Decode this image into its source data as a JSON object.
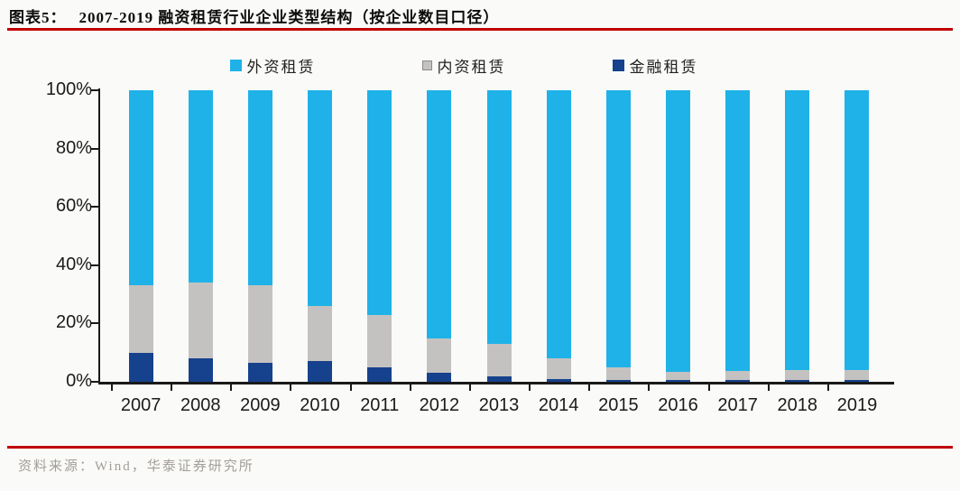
{
  "title": {
    "figure_label": "图表5：",
    "text": "2007-2019 融资租赁行业企业类型结构（按企业数目口径）"
  },
  "footer": {
    "source": "资料来源：Wind，华泰证券研究所"
  },
  "colors": {
    "foreign_leasing": "#1FB2E8",
    "domestic_leasing": "#C4C2C0",
    "financial_leasing": "#16418C",
    "rule_red": "#C00000",
    "axis_black": "#1a1a1a"
  },
  "chart_data": {
    "type": "bar",
    "stacked": true,
    "title": "2007-2019 融资租赁行业企业类型结构（按企业数目口径）",
    "categories": [
      "2007",
      "2008",
      "2009",
      "2010",
      "2011",
      "2012",
      "2013",
      "2014",
      "2015",
      "2016",
      "2017",
      "2018",
      "2019"
    ],
    "series": [
      {
        "name": "外资租赁",
        "color": "#1FB2E8",
        "swatch": "large",
        "values": [
          67,
          66,
          67,
          74,
          77,
          85,
          87,
          92,
          95,
          96.5,
          96.3,
          96,
          96
        ]
      },
      {
        "name": "内资租赁",
        "color": "#C4C2C0",
        "swatch": "small",
        "values": [
          23,
          26,
          26.5,
          19,
          18,
          12,
          11,
          7,
          4.3,
          3,
          3.2,
          3.5,
          3.4
        ]
      },
      {
        "name": "金融租赁",
        "color": "#16418C",
        "swatch": "large",
        "values": [
          10,
          8,
          6.5,
          7,
          5,
          3,
          2,
          1,
          0.7,
          0.5,
          0.5,
          0.5,
          0.6
        ]
      }
    ],
    "stack_order_bottom_to_top": [
      "金融租赁",
      "内资租赁",
      "外资租赁"
    ],
    "unit": "%",
    "ylim": [
      0,
      100
    ],
    "y_ticks_top_to_bottom": [
      "100%",
      "80%",
      "60%",
      "40%",
      "20%",
      "0%"
    ],
    "grid": false,
    "legend_position": "top"
  }
}
